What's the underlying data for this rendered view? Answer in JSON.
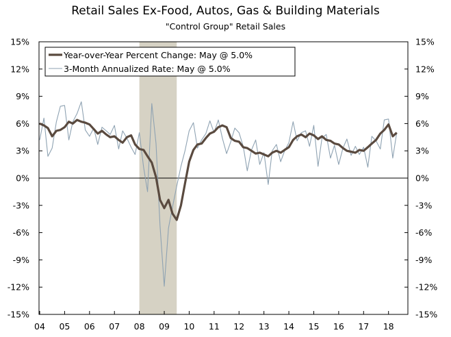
{
  "chart_data": {
    "type": "line",
    "title": "Retail Sales Ex-Food, Autos, Gas & Building Materials",
    "subtitle": "\"Control Group\" Retail Sales",
    "x_tick_labels": [
      "04",
      "05",
      "06",
      "07",
      "08",
      "09",
      "10",
      "11",
      "12",
      "13",
      "14",
      "15",
      "16",
      "17",
      "18"
    ],
    "x_ticks": [
      2004,
      2005,
      2006,
      2007,
      2008,
      2009,
      2010,
      2011,
      2012,
      2013,
      2014,
      2015,
      2016,
      2017,
      2018
    ],
    "xlim": [
      2004.0,
      2018.75
    ],
    "ylim": [
      -15,
      15
    ],
    "y_ticks": [
      -15,
      -12,
      -9,
      -6,
      -3,
      0,
      3,
      6,
      9,
      12,
      15
    ],
    "y_tick_labels": [
      "-15%",
      "-12%",
      "-9%",
      "-6%",
      "-3%",
      "0%",
      "3%",
      "6%",
      "9%",
      "12%",
      "15%"
    ],
    "recession_shading": [
      2008.0,
      2009.5
    ],
    "legend_position": "top-left",
    "colors": {
      "yoy": "#5a4a3f",
      "annualized": "#8ea2b2",
      "recession": "#d6d2c4"
    },
    "series": [
      {
        "name": "Year-over-Year Percent Change: May @ 5.0%",
        "x": [
          2004.0,
          2004.17,
          2004.33,
          2004.5,
          2004.67,
          2004.83,
          2005.0,
          2005.17,
          2005.33,
          2005.5,
          2005.67,
          2005.83,
          2006.0,
          2006.17,
          2006.33,
          2006.5,
          2006.67,
          2006.83,
          2007.0,
          2007.17,
          2007.33,
          2007.5,
          2007.67,
          2007.83,
          2008.0,
          2008.17,
          2008.33,
          2008.5,
          2008.67,
          2008.83,
          2009.0,
          2009.17,
          2009.33,
          2009.5,
          2009.67,
          2009.83,
          2010.0,
          2010.17,
          2010.33,
          2010.5,
          2010.67,
          2010.83,
          2011.0,
          2011.17,
          2011.33,
          2011.5,
          2011.67,
          2011.83,
          2012.0,
          2012.17,
          2012.33,
          2012.5,
          2012.67,
          2012.83,
          2013.0,
          2013.17,
          2013.33,
          2013.5,
          2013.67,
          2013.83,
          2014.0,
          2014.17,
          2014.33,
          2014.5,
          2014.67,
          2014.83,
          2015.0,
          2015.17,
          2015.33,
          2015.5,
          2015.67,
          2015.83,
          2016.0,
          2016.17,
          2016.33,
          2016.5,
          2016.67,
          2016.83,
          2017.0,
          2017.17,
          2017.33,
          2017.5,
          2017.67,
          2017.83,
          2018.0,
          2018.17,
          2018.33
        ],
        "y": [
          6.0,
          5.8,
          5.5,
          4.6,
          5.2,
          5.3,
          5.6,
          6.2,
          6.0,
          6.4,
          6.2,
          6.1,
          5.9,
          5.4,
          4.9,
          5.2,
          4.8,
          4.5,
          4.6,
          4.2,
          3.9,
          4.5,
          4.7,
          3.7,
          3.2,
          3.1,
          2.4,
          1.7,
          0.1,
          -2.4,
          -3.3,
          -2.4,
          -3.9,
          -4.6,
          -3.0,
          -0.6,
          1.8,
          3.1,
          3.7,
          3.8,
          4.4,
          4.9,
          5.1,
          5.6,
          5.8,
          5.6,
          4.4,
          4.1,
          4.0,
          3.4,
          3.3,
          3.0,
          2.7,
          2.8,
          2.6,
          2.4,
          2.8,
          3.0,
          2.8,
          3.1,
          3.4,
          4.2,
          4.6,
          4.8,
          4.5,
          4.9,
          4.7,
          4.3,
          4.6,
          4.2,
          4.1,
          3.8,
          3.7,
          3.3,
          3.0,
          2.9,
          2.8,
          3.1,
          3.0,
          3.4,
          3.8,
          4.2,
          4.9,
          5.3,
          5.9,
          4.6,
          5.0
        ]
      },
      {
        "name": "3-Month Annualized Rate: May @ 5.0%",
        "x": [
          2004.0,
          2004.17,
          2004.33,
          2004.5,
          2004.67,
          2004.83,
          2005.0,
          2005.17,
          2005.33,
          2005.5,
          2005.67,
          2005.83,
          2006.0,
          2006.17,
          2006.33,
          2006.5,
          2006.67,
          2006.83,
          2007.0,
          2007.17,
          2007.33,
          2007.5,
          2007.67,
          2007.83,
          2008.0,
          2008.17,
          2008.33,
          2008.5,
          2008.67,
          2008.83,
          2009.0,
          2009.17,
          2009.33,
          2009.5,
          2009.67,
          2009.83,
          2010.0,
          2010.17,
          2010.33,
          2010.5,
          2010.67,
          2010.83,
          2011.0,
          2011.17,
          2011.33,
          2011.5,
          2011.67,
          2011.83,
          2012.0,
          2012.17,
          2012.33,
          2012.5,
          2012.67,
          2012.83,
          2013.0,
          2013.17,
          2013.33,
          2013.5,
          2013.67,
          2013.83,
          2014.0,
          2014.17,
          2014.33,
          2014.5,
          2014.67,
          2014.83,
          2015.0,
          2015.17,
          2015.33,
          2015.5,
          2015.67,
          2015.83,
          2016.0,
          2016.17,
          2016.33,
          2016.5,
          2016.67,
          2016.83,
          2017.0,
          2017.17,
          2017.33,
          2017.5,
          2017.67,
          2017.83,
          2018.0,
          2018.17,
          2018.33
        ],
        "y": [
          4.2,
          6.6,
          2.4,
          3.3,
          6.2,
          7.9,
          8.0,
          4.2,
          6.2,
          7.1,
          8.4,
          5.3,
          4.6,
          5.5,
          3.7,
          5.6,
          5.2,
          4.8,
          5.8,
          3.2,
          5.2,
          4.4,
          3.4,
          2.6,
          5.0,
          1.2,
          -1.5,
          8.2,
          3.8,
          -5.2,
          -11.9,
          -5.5,
          -3.2,
          -0.9,
          1.3,
          3.0,
          5.2,
          6.1,
          3.3,
          4.2,
          4.9,
          6.3,
          5.0,
          6.4,
          4.4,
          2.7,
          4.0,
          5.5,
          5.0,
          3.5,
          0.8,
          3.1,
          4.2,
          1.5,
          2.8,
          -0.7,
          3.0,
          3.7,
          1.8,
          3.0,
          3.9,
          6.2,
          4.1,
          5.0,
          5.2,
          3.5,
          5.8,
          1.3,
          4.4,
          4.8,
          2.2,
          3.6,
          1.5,
          3.3,
          4.3,
          2.5,
          3.5,
          2.6,
          3.4,
          1.2,
          4.6,
          4.1,
          3.2,
          6.4,
          6.5,
          2.2,
          5.0
        ]
      }
    ]
  }
}
